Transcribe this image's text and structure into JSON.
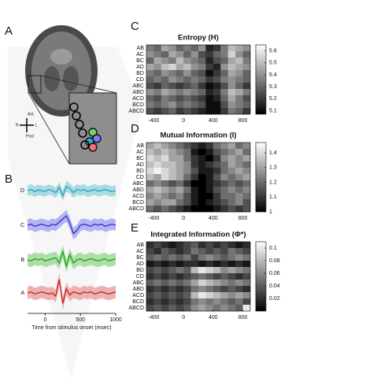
{
  "panel_labels": [
    "A",
    "B",
    "C",
    "D",
    "E"
  ],
  "brain": {
    "labels": [
      "Ant.",
      "Post",
      "R",
      "L"
    ]
  },
  "chart_data": [
    {
      "type": "line",
      "x": [
        -250,
        -200,
        -150,
        -100,
        -50,
        0,
        50,
        100,
        150,
        200,
        250,
        300,
        350,
        400,
        450,
        500,
        550,
        600,
        650,
        700,
        750,
        800,
        850,
        900,
        950,
        1000
      ],
      "xlim": [
        -250,
        1000
      ],
      "xticks": [
        0,
        500,
        1000
      ],
      "xlabel": "Time from stimulus onset (msec)",
      "ylim": [
        -1.5,
        1.5
      ],
      "series": [
        {
          "name": "D",
          "color": "#2a9fae",
          "band_color": "#a9dbe3",
          "values": [
            0,
            0.1,
            -0.1,
            0.05,
            0,
            -0.1,
            0.1,
            0,
            -0.2,
            0.3,
            -0.5,
            0.4,
            0.2,
            -0.2,
            0.1,
            0,
            0.1,
            -0.1,
            0,
            0.1,
            -0.05,
            0,
            0.1,
            0,
            -0.1,
            0
          ],
          "errors": [
            0.5,
            0.5,
            0.5,
            0.5,
            0.5,
            0.5,
            0.5,
            0.5,
            0.5,
            0.5,
            0.5,
            0.5,
            0.5,
            0.5,
            0.5,
            0.5,
            0.5,
            0.5,
            0.5,
            0.5,
            0.5,
            0.5,
            0.5,
            0.5,
            0.5,
            0.5
          ]
        },
        {
          "name": "C",
          "color": "#2b2bcc",
          "band_color": "#b4b4f2",
          "values": [
            0,
            0.1,
            -0.1,
            0,
            0.1,
            0,
            -0.1,
            0.1,
            0,
            0.3,
            0.6,
            0.9,
            0.2,
            -0.8,
            -0.5,
            0,
            0.1,
            0,
            -0.1,
            0.1,
            0,
            0.1,
            -0.1,
            0,
            0.1,
            0
          ],
          "errors": [
            0.55,
            0.55,
            0.55,
            0.55,
            0.55,
            0.55,
            0.55,
            0.55,
            0.55,
            0.55,
            0.55,
            0.55,
            0.55,
            0.55,
            0.55,
            0.55,
            0.55,
            0.55,
            0.55,
            0.55,
            0.55,
            0.55,
            0.55,
            0.55,
            0.55,
            0.55
          ]
        },
        {
          "name": "B",
          "color": "#1f9e1f",
          "band_color": "#acdfa6",
          "values": [
            0,
            -0.1,
            0.1,
            0,
            0.1,
            -0.1,
            0,
            0.1,
            0.2,
            -0.3,
            0.8,
            -0.6,
            0.5,
            -0.3,
            0,
            0.1,
            -0.1,
            0,
            0.1,
            0,
            -0.1,
            0,
            0.1,
            -0.1,
            0,
            0.1
          ],
          "errors": [
            0.6,
            0.6,
            0.6,
            0.6,
            0.6,
            0.6,
            0.6,
            0.6,
            0.6,
            0.6,
            0.6,
            0.6,
            0.6,
            0.6,
            0.6,
            0.6,
            0.6,
            0.6,
            0.6,
            0.6,
            0.6,
            0.6,
            0.6,
            0.6,
            0.6,
            0.6
          ]
        },
        {
          "name": "A",
          "color": "#c41f1f",
          "band_color": "#eeb1b1",
          "values": [
            0,
            0.1,
            -0.1,
            0,
            0.1,
            0,
            -0.1,
            0,
            -0.3,
            1.3,
            -1.0,
            0.4,
            -0.2,
            0.1,
            0,
            -0.1,
            0.1,
            0,
            0.1,
            -0.1,
            0,
            0.1,
            0,
            -0.1,
            0,
            0.1
          ],
          "errors": [
            0.6,
            0.6,
            0.6,
            0.6,
            0.6,
            0.6,
            0.6,
            0.6,
            0.6,
            0.6,
            0.6,
            0.6,
            0.6,
            0.6,
            0.6,
            0.6,
            0.6,
            0.6,
            0.6,
            0.6,
            0.6,
            0.6,
            0.6,
            0.6,
            0.6,
            0.6
          ]
        }
      ]
    },
    {
      "type": "heatmap",
      "title": "Entropy (H)",
      "y": [
        "AB",
        "AC",
        "BC",
        "AD",
        "BD",
        "CD",
        "ABC",
        "ABD",
        "ACD",
        "BCD",
        "ABCD"
      ],
      "x": [
        -450,
        -350,
        -250,
        -150,
        -50,
        50,
        150,
        250,
        350,
        450,
        550,
        650,
        750,
        850
      ],
      "xlim": [
        -500,
        900
      ],
      "xticks": [
        -400,
        0,
        400,
        800
      ],
      "zlim": [
        5.07,
        5.65
      ],
      "zticks": [
        5.1,
        5.2,
        5.3,
        5.4,
        5.5,
        5.6
      ],
      "z": [
        [
          5.35,
          5.3,
          5.45,
          5.4,
          5.3,
          5.35,
          5.3,
          5.4,
          5.15,
          5.2,
          5.35,
          5.5,
          5.45,
          5.4
        ],
        [
          5.4,
          5.35,
          5.3,
          5.45,
          5.4,
          5.3,
          5.4,
          5.25,
          5.2,
          5.3,
          5.35,
          5.55,
          5.4,
          5.3
        ],
        [
          5.3,
          5.45,
          5.4,
          5.35,
          5.5,
          5.4,
          5.35,
          5.3,
          5.15,
          5.25,
          5.3,
          5.45,
          5.5,
          5.35
        ],
        [
          5.45,
          5.4,
          5.5,
          5.55,
          5.45,
          5.5,
          5.4,
          5.35,
          5.2,
          5.15,
          5.4,
          5.5,
          5.45,
          5.4
        ],
        [
          5.35,
          5.3,
          5.4,
          5.35,
          5.3,
          5.4,
          5.3,
          5.25,
          5.1,
          5.2,
          5.3,
          5.45,
          5.4,
          5.3
        ],
        [
          5.3,
          5.35,
          5.3,
          5.4,
          5.35,
          5.3,
          5.35,
          5.3,
          5.2,
          5.25,
          5.35,
          5.4,
          5.35,
          5.3
        ],
        [
          5.25,
          5.2,
          5.3,
          5.25,
          5.2,
          5.25,
          5.3,
          5.2,
          5.1,
          5.15,
          5.25,
          5.4,
          5.3,
          5.2
        ],
        [
          5.4,
          5.35,
          5.45,
          5.4,
          5.35,
          5.4,
          5.35,
          5.3,
          5.15,
          5.2,
          5.35,
          5.5,
          5.45,
          5.35
        ],
        [
          5.3,
          5.25,
          5.35,
          5.3,
          5.25,
          5.3,
          5.25,
          5.2,
          5.1,
          5.15,
          5.3,
          5.45,
          5.35,
          5.25
        ],
        [
          5.35,
          5.3,
          5.35,
          5.4,
          5.3,
          5.35,
          5.3,
          5.25,
          5.1,
          5.1,
          5.25,
          5.4,
          5.35,
          5.3
        ],
        [
          5.25,
          5.2,
          5.25,
          5.3,
          5.2,
          5.25,
          5.2,
          5.15,
          5.1,
          5.1,
          5.2,
          5.35,
          5.3,
          5.2
        ]
      ]
    },
    {
      "type": "heatmap",
      "title": "Mutual Information (I)",
      "y": [
        "AB",
        "AC",
        "BC",
        "AD",
        "BD",
        "CD",
        "ABC",
        "ABD",
        "ACD",
        "BCD",
        "ABCD"
      ],
      "x": [
        -450,
        -350,
        -250,
        -150,
        -50,
        50,
        150,
        250,
        350,
        450,
        550,
        650,
        750,
        850
      ],
      "xlim": [
        -500,
        900
      ],
      "xticks": [
        -400,
        0,
        400,
        800
      ],
      "zlim": [
        1,
        1.47
      ],
      "zticks": [
        1,
        1.1,
        1.2,
        1.3,
        1.4
      ],
      "z": [
        [
          1.3,
          1.35,
          1.3,
          1.25,
          1.2,
          1.15,
          1.1,
          1.05,
          1.1,
          1.2,
          1.25,
          1.3,
          1.2,
          1.25
        ],
        [
          1.35,
          1.3,
          1.35,
          1.3,
          1.25,
          1.2,
          1.05,
          1.0,
          1.05,
          1.15,
          1.2,
          1.25,
          1.3,
          1.2
        ],
        [
          1.4,
          1.35,
          1.4,
          1.3,
          1.3,
          1.2,
          1.1,
          1.05,
          1.0,
          1.1,
          1.25,
          1.3,
          1.25,
          1.3
        ],
        [
          1.35,
          1.4,
          1.35,
          1.35,
          1.3,
          1.25,
          1.1,
          1.05,
          1.1,
          1.15,
          1.2,
          1.3,
          1.25,
          1.2
        ],
        [
          1.4,
          1.45,
          1.4,
          1.35,
          1.3,
          1.25,
          1.15,
          1.05,
          1.05,
          1.1,
          1.2,
          1.25,
          1.3,
          1.25
        ],
        [
          1.35,
          1.3,
          1.4,
          1.35,
          1.3,
          1.2,
          1.1,
          1.0,
          1.05,
          1.15,
          1.25,
          1.2,
          1.25,
          1.3
        ],
        [
          1.2,
          1.25,
          1.2,
          1.15,
          1.2,
          1.1,
          1.0,
          1.0,
          1.05,
          1.1,
          1.15,
          1.2,
          1.15,
          1.2
        ],
        [
          1.3,
          1.35,
          1.3,
          1.25,
          1.3,
          1.2,
          1.05,
          1.0,
          1.05,
          1.15,
          1.2,
          1.25,
          1.2,
          1.25
        ],
        [
          1.25,
          1.3,
          1.25,
          1.2,
          1.25,
          1.15,
          1.05,
          1.0,
          1.0,
          1.1,
          1.2,
          1.2,
          1.25,
          1.2
        ],
        [
          1.3,
          1.25,
          1.3,
          1.3,
          1.2,
          1.15,
          1.05,
          1.0,
          1.05,
          1.1,
          1.15,
          1.2,
          1.25,
          1.15
        ],
        [
          1.2,
          1.15,
          1.2,
          1.15,
          1.1,
          1.05,
          1.0,
          1.0,
          1.0,
          1.05,
          1.1,
          1.15,
          1.1,
          1.15
        ]
      ]
    },
    {
      "type": "heatmap",
      "title": "Integrated Information (Φ*)",
      "y": [
        "AB",
        "AC",
        "BC",
        "AD",
        "BD",
        "CD",
        "ABC",
        "ABD",
        "ACD",
        "BCD",
        "ABCD"
      ],
      "x": [
        -450,
        -350,
        -250,
        -150,
        -50,
        50,
        150,
        250,
        350,
        450,
        550,
        650,
        750,
        850
      ],
      "xlim": [
        -500,
        900
      ],
      "xticks": [
        -400,
        0,
        400,
        800
      ],
      "zlim": [
        0,
        0.11
      ],
      "zticks": [
        0.02,
        0.04,
        0.06,
        0.08,
        0.1
      ],
      "z": [
        [
          0.02,
          0.03,
          0.02,
          0.01,
          0.02,
          0.03,
          0.04,
          0.02,
          0.03,
          0.02,
          0.03,
          0.02,
          0.01,
          0.02
        ],
        [
          0.03,
          0.02,
          0.04,
          0.03,
          0.02,
          0.03,
          0.05,
          0.04,
          0.03,
          0.04,
          0.03,
          0.05,
          0.04,
          0.03
        ],
        [
          0.04,
          0.05,
          0.04,
          0.05,
          0.04,
          0.05,
          0.03,
          0.05,
          0.06,
          0.05,
          0.04,
          0.05,
          0.06,
          0.05
        ],
        [
          0.01,
          0.02,
          0.01,
          0.02,
          0.01,
          0.02,
          0.02,
          0.01,
          0.02,
          0.01,
          0.02,
          0.01,
          0.02,
          0.01
        ],
        [
          0.03,
          0.04,
          0.03,
          0.04,
          0.05,
          0.04,
          0.08,
          0.1,
          0.09,
          0.08,
          0.06,
          0.07,
          0.06,
          0.05
        ],
        [
          0.02,
          0.03,
          0.02,
          0.03,
          0.02,
          0.03,
          0.04,
          0.05,
          0.04,
          0.03,
          0.04,
          0.03,
          0.02,
          0.03
        ],
        [
          0.04,
          0.05,
          0.04,
          0.05,
          0.04,
          0.05,
          0.07,
          0.09,
          0.08,
          0.07,
          0.06,
          0.05,
          0.06,
          0.05
        ],
        [
          0.02,
          0.03,
          0.02,
          0.03,
          0.02,
          0.03,
          0.05,
          0.06,
          0.05,
          0.04,
          0.03,
          0.04,
          0.03,
          0.02
        ],
        [
          0.03,
          0.04,
          0.03,
          0.04,
          0.03,
          0.04,
          0.08,
          0.1,
          0.09,
          0.08,
          0.07,
          0.06,
          0.07,
          0.06
        ],
        [
          0.02,
          0.03,
          0.02,
          0.03,
          0.02,
          0.03,
          0.05,
          0.06,
          0.05,
          0.06,
          0.05,
          0.04,
          0.05,
          0.03
        ],
        [
          0.03,
          0.04,
          0.03,
          0.04,
          0.03,
          0.04,
          0.06,
          0.07,
          0.06,
          0.05,
          0.06,
          0.05,
          0.04,
          0.1
        ]
      ]
    }
  ]
}
